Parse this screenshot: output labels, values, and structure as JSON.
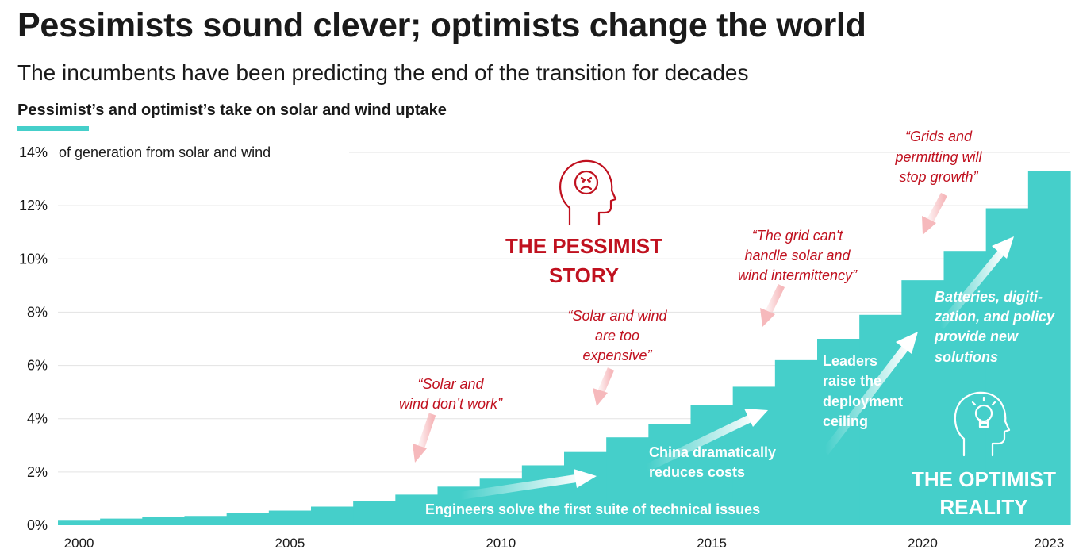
{
  "header": {
    "title": "Pessimists sound clever; optimists change the world",
    "subtitle": "The incumbents have been predicting the end of the transition for decades",
    "panel_title": "Pessimist’s and optimist’s take on solar and wind uptake"
  },
  "colors": {
    "area": "#45cfca",
    "pessimist": "#c0111f",
    "grid": "#e3e3e3",
    "arrow_pessimist": "#f6b9bc",
    "optimist_text": "#ffffff"
  },
  "chart_data": {
    "type": "area",
    "style": "step",
    "y_unit_label": "of generation from solar and wind",
    "ylim": [
      0,
      14
    ],
    "yticks": [
      "0%",
      "2%",
      "4%",
      "6%",
      "8%",
      "10%",
      "12%",
      "14%"
    ],
    "xlim": [
      2000,
      2023
    ],
    "xticks": [
      "2000",
      "2005",
      "2010",
      "2015",
      "2020",
      "2023"
    ],
    "grid": true,
    "legend": "none",
    "x": [
      2000,
      2001,
      2002,
      2003,
      2004,
      2005,
      2006,
      2007,
      2008,
      2009,
      2010,
      2011,
      2012,
      2013,
      2014,
      2015,
      2016,
      2017,
      2018,
      2019,
      2020,
      2021,
      2022,
      2023
    ],
    "values": [
      0.2,
      0.25,
      0.3,
      0.35,
      0.45,
      0.55,
      0.7,
      0.9,
      1.15,
      1.45,
      1.75,
      2.25,
      2.75,
      3.3,
      3.8,
      4.5,
      5.2,
      6.2,
      7.0,
      7.9,
      9.2,
      10.3,
      11.9,
      13.3
    ]
  },
  "pessimist": {
    "heading_line1": "THE PESSIMIST",
    "heading_line2": "STORY",
    "quotes": [
      {
        "line1": "“Solar and",
        "line2": "wind don’t work”"
      },
      {
        "line1": "“Solar and wind",
        "line2": "are too",
        "line3": "expensive”"
      },
      {
        "line1": "“The grid can't",
        "line2": "handle solar and",
        "line3": "wind intermittency”"
      },
      {
        "line1": "“Grids and",
        "line2": "permitting will",
        "line3": "stop growth”"
      }
    ]
  },
  "optimist": {
    "heading_line1": "THE OPTIMIST",
    "heading_line2": "REALITY",
    "notes": [
      {
        "line1": "Engineers solve the first suite of technical issues"
      },
      {
        "line1": "China dramatically",
        "line2": "reduces costs"
      },
      {
        "line1": "Leaders",
        "line2": "raise the",
        "line3": "deployment",
        "line4": "ceiling"
      },
      {
        "line1": "Batteries, digiti-",
        "line2": "zation, and policy",
        "line3": "provide new",
        "line4": "solutions"
      }
    ]
  }
}
